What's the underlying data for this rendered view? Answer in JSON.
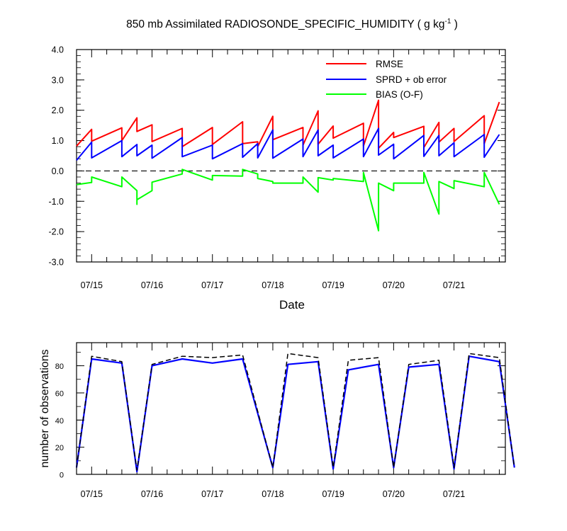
{
  "title": "850 mb Assimilated RADIOSONDE_SPECIFIC_HUMIDITY ( g kg",
  "title_sup": "-1",
  "title_end": " )",
  "chart_data": [
    {
      "type": "line",
      "xlabel": "Date",
      "ylabel": "",
      "ylim": [
        -3,
        4
      ],
      "y_tick_labels": [
        "4.0",
        "3.0",
        "2.0",
        "1.0",
        "0.0",
        "-1.0",
        "-2.0",
        "-3.0"
      ],
      "x_tick_labels": [
        "07/15",
        "07/16",
        "07/17",
        "07/18",
        "07/19",
        "07/20",
        "07/21"
      ],
      "zero_line": "dashed",
      "legend_position": "top-right",
      "series": [
        {
          "name": "RMSE",
          "color": "#ff0000",
          "points": [
            [
              0,
              0.82
            ],
            [
              1,
              1.37
            ],
            [
              1,
              0.98
            ],
            [
              3,
              1.42
            ],
            [
              3,
              1.0
            ],
            [
              4,
              1.75
            ],
            [
              4,
              1.3
            ],
            [
              5,
              1.52
            ],
            [
              5,
              0.97
            ],
            [
              7,
              1.4
            ],
            [
              7,
              0.8
            ],
            [
              9,
              1.43
            ],
            [
              9,
              0.87
            ],
            [
              11,
              1.62
            ],
            [
              11,
              0.9
            ],
            [
              12,
              0.96
            ],
            [
              12,
              0.8
            ],
            [
              13,
              1.8
            ],
            [
              13,
              1.03
            ],
            [
              15,
              1.43
            ],
            [
              15,
              0.85
            ],
            [
              16,
              1.98
            ],
            [
              16,
              0.88
            ],
            [
              17,
              1.48
            ],
            [
              17,
              1.08
            ],
            [
              19,
              1.57
            ],
            [
              19,
              0.82
            ],
            [
              20,
              2.33
            ],
            [
              20,
              0.75
            ],
            [
              21,
              1.27
            ],
            [
              21,
              1.1
            ],
            [
              23,
              1.47
            ],
            [
              23,
              0.77
            ],
            [
              24,
              1.6
            ],
            [
              24,
              0.95
            ],
            [
              25,
              1.4
            ],
            [
              25,
              0.97
            ],
            [
              27,
              1.82
            ],
            [
              27,
              0.9
            ],
            [
              28,
              2.27
            ]
          ]
        },
        {
          "name": "SPRD + ob error",
          "color": "#0000ff",
          "points": [
            [
              0,
              0.35
            ],
            [
              1,
              0.95
            ],
            [
              1,
              0.43
            ],
            [
              3,
              1.0
            ],
            [
              3,
              0.47
            ],
            [
              4,
              0.87
            ],
            [
              4,
              0.5
            ],
            [
              5,
              0.85
            ],
            [
              5,
              0.42
            ],
            [
              7,
              1.1
            ],
            [
              7,
              0.47
            ],
            [
              9,
              0.85
            ],
            [
              9,
              0.4
            ],
            [
              11,
              0.9
            ],
            [
              11,
              0.45
            ],
            [
              12,
              0.9
            ],
            [
              12,
              0.43
            ],
            [
              13,
              1.35
            ],
            [
              13,
              0.42
            ],
            [
              15,
              1.05
            ],
            [
              15,
              0.47
            ],
            [
              16,
              1.35
            ],
            [
              16,
              0.5
            ],
            [
              17,
              0.85
            ],
            [
              17,
              0.43
            ],
            [
              19,
              1.05
            ],
            [
              19,
              0.47
            ],
            [
              20,
              1.4
            ],
            [
              20,
              0.52
            ],
            [
              21,
              0.88
            ],
            [
              21,
              0.4
            ],
            [
              23,
              1.17
            ],
            [
              23,
              0.48
            ],
            [
              24,
              1.17
            ],
            [
              24,
              0.5
            ],
            [
              25,
              0.93
            ],
            [
              25,
              0.47
            ],
            [
              27,
              1.2
            ],
            [
              27,
              0.45
            ],
            [
              28,
              1.2
            ]
          ]
        },
        {
          "name": "BIAS (O-F)",
          "color": "#00ff00",
          "points": [
            [
              0,
              -0.45
            ],
            [
              1,
              -0.38
            ],
            [
              1,
              -0.2
            ],
            [
              3,
              -0.52
            ],
            [
              3,
              -0.2
            ],
            [
              4,
              -0.65
            ],
            [
              4,
              -1.1
            ],
            [
              4,
              -0.95
            ],
            [
              5,
              -0.65
            ],
            [
              5,
              -0.37
            ],
            [
              7,
              -0.1
            ],
            [
              7,
              0.05
            ],
            [
              9,
              -0.3
            ],
            [
              9,
              -0.15
            ],
            [
              11,
              -0.17
            ],
            [
              11,
              0.05
            ],
            [
              12,
              -0.1
            ],
            [
              12,
              -0.25
            ],
            [
              13,
              -0.35
            ],
            [
              13,
              -0.4
            ],
            [
              15,
              -0.4
            ],
            [
              15,
              -0.2
            ],
            [
              16,
              -0.7
            ],
            [
              16,
              -0.22
            ],
            [
              17,
              -0.3
            ],
            [
              17,
              -0.25
            ],
            [
              19,
              -0.35
            ],
            [
              19,
              -0.05
            ],
            [
              20,
              -1.97
            ],
            [
              20,
              -0.4
            ],
            [
              21,
              -0.65
            ],
            [
              21,
              -0.4
            ],
            [
              23,
              -0.4
            ],
            [
              23,
              -0.05
            ],
            [
              24,
              -1.42
            ],
            [
              24,
              -0.35
            ],
            [
              25,
              -0.58
            ],
            [
              25,
              -0.32
            ],
            [
              27,
              -0.52
            ],
            [
              27,
              -0.05
            ],
            [
              28,
              -1.1
            ]
          ]
        }
      ]
    },
    {
      "type": "line",
      "xlabel": "",
      "ylabel": "number of observations",
      "ylim": [
        0,
        97
      ],
      "y_tick_labels": [
        "0",
        "20",
        "40",
        "60",
        "80"
      ],
      "x_tick_labels": [
        "07/15",
        "07/16",
        "07/17",
        "07/18",
        "07/19",
        "07/20",
        "07/21"
      ],
      "series": [
        {
          "color": "#0000ff",
          "style": "solid",
          "points": [
            [
              0,
              5
            ],
            [
              1,
              85
            ],
            [
              3,
              82
            ],
            [
              4,
              2
            ],
            [
              5,
              80
            ],
            [
              7,
              85
            ],
            [
              9,
              82
            ],
            [
              11,
              85
            ],
            [
              13,
              5
            ],
            [
              14,
              81
            ],
            [
              16,
              83
            ],
            [
              17,
              4
            ],
            [
              18,
              77
            ],
            [
              20,
              81
            ],
            [
              21,
              5
            ],
            [
              22,
              79
            ],
            [
              24,
              81
            ],
            [
              25,
              4
            ],
            [
              26,
              87
            ],
            [
              28,
              83
            ],
            [
              29,
              5
            ]
          ]
        },
        {
          "color": "#000000",
          "style": "dashed",
          "points": [
            [
              0,
              5
            ],
            [
              1,
              87
            ],
            [
              3,
              83
            ],
            [
              4,
              3
            ],
            [
              5,
              81
            ],
            [
              7,
              87
            ],
            [
              9,
              86
            ],
            [
              11,
              88
            ],
            [
              13,
              5
            ],
            [
              14,
              89
            ],
            [
              16,
              86
            ],
            [
              17,
              5
            ],
            [
              18,
              84
            ],
            [
              20,
              86
            ],
            [
              21,
              5
            ],
            [
              22,
              81
            ],
            [
              24,
              84
            ],
            [
              25,
              5
            ],
            [
              26,
              89
            ],
            [
              28,
              86
            ],
            [
              29,
              5
            ]
          ]
        }
      ]
    }
  ]
}
